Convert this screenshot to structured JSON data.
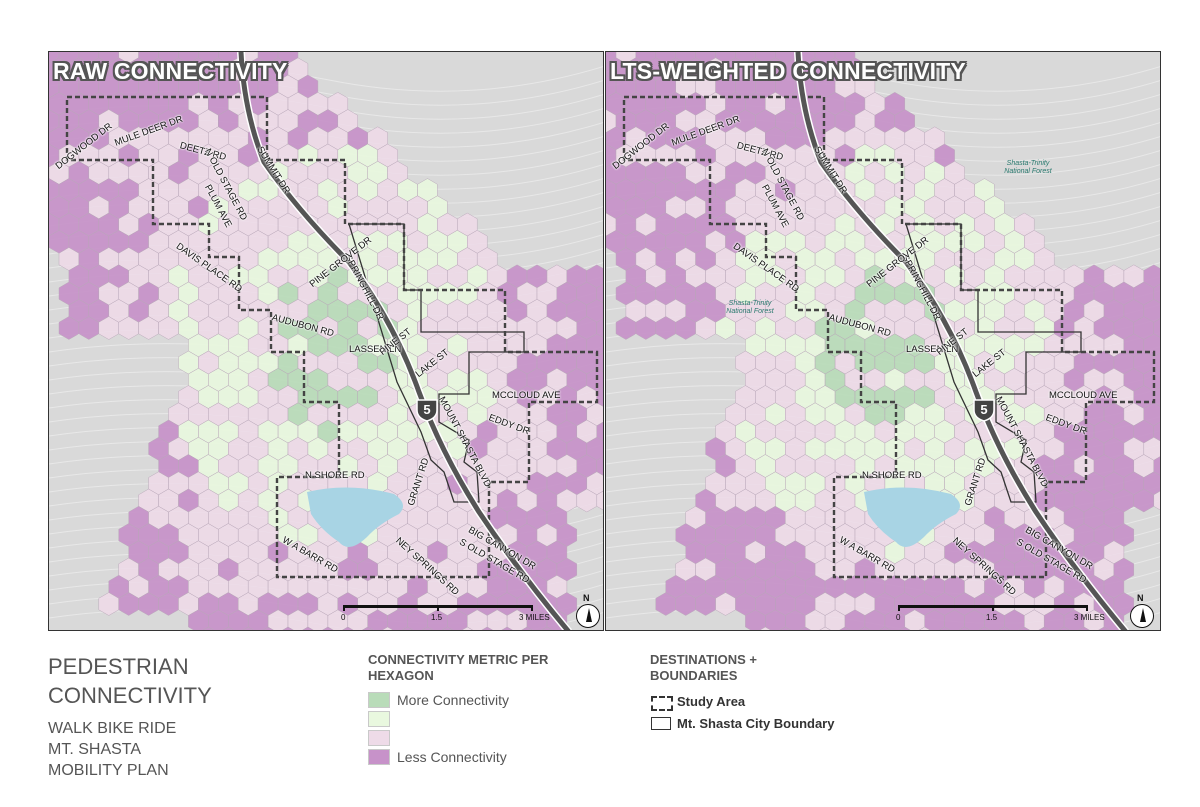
{
  "panels": [
    {
      "title": "RAW CONNECTIVITY",
      "roads": [
        "DOGWOOD DR",
        "MULE DEER DR",
        "DEETZ RD",
        "N OLD STAGE RD",
        "SUMMIT DR",
        "PLUM AVE",
        "DAVIS PLACE RD",
        "SPRINGHILL DR",
        "PINE GROVE DR",
        "AUDUBON RD",
        "LASSEN LN",
        "PINE ST",
        "LAKE ST",
        "MOUNT SHASTA BLVD",
        "MCCLOUD AVE",
        "EDDY DR",
        "N SHORE RD",
        "GRANT RD",
        "BIG CANYON DR",
        "W A BARR RD",
        "NEY SPRINGS RD",
        "S OLD STAGE RD"
      ],
      "forest_labels": [],
      "shield": "5",
      "scale": [
        "0",
        "1.5",
        "3 MILES"
      ],
      "north": "N"
    },
    {
      "title": "LTS-WEIGHTED CONNECTIVITY",
      "roads": [
        "DOGWOOD DR",
        "MULE DEER DR",
        "DEETZ RD",
        "N OLD STAGE RD",
        "SUMMIT DR",
        "PLUM AVE",
        "DAVIS PLACE RD",
        "SPRINGHILL DR",
        "PINE GROVE DR",
        "AUDUBON RD",
        "LASSEN LN",
        "PINE ST",
        "LAKE ST",
        "MOUNT SHASTA BLVD",
        "MCCLOUD AVE",
        "EDDY DR",
        "N SHORE RD",
        "GRANT RD",
        "BIG CANYON DR",
        "W A BARR RD",
        "NEY SPRINGS RD",
        "S OLD STAGE RD"
      ],
      "forest_labels": [
        "Shasta-Trinity National Forest",
        "Shasta-Trinity National Forest"
      ],
      "shield": "5",
      "scale": [
        "0",
        "1.5",
        "3 MILES"
      ],
      "north": "N"
    }
  ],
  "legend": {
    "title_line1": "PEDESTRIAN",
    "title_line2": "CONNECTIVITY",
    "sub_line1": "WALK BIKE RIDE",
    "sub_line2": "MT. SHASTA",
    "sub_line3": "MOBILITY PLAN",
    "metric_heading_line1": "CONNECTIVITY METRIC PER",
    "metric_heading_line2": "HEXAGON",
    "metric_items": [
      {
        "label": "More Connectivity",
        "color": "#b9dcb9"
      },
      {
        "label": "",
        "color": "#e9f8df"
      },
      {
        "label": "",
        "color": "#eedbe8"
      },
      {
        "label": "Less Connectivity",
        "color": "#c792c9"
      }
    ],
    "dest_heading_line1": "DESTINATIONS +",
    "dest_heading_line2": "BOUNDARIES",
    "boundaries": [
      {
        "label": "Study Area",
        "style": "dashed"
      },
      {
        "label": "Mt. Shasta City Boundary",
        "style": "solid"
      }
    ]
  },
  "colors": {
    "hex_purple": "#c792c9",
    "hex_pink": "#eedbe8",
    "hex_light_green": "#e9f8df",
    "hex_green": "#b9dcb9",
    "lake": "#a8d4e4",
    "basemap": "#d9d9d9",
    "highway": "#555555"
  }
}
